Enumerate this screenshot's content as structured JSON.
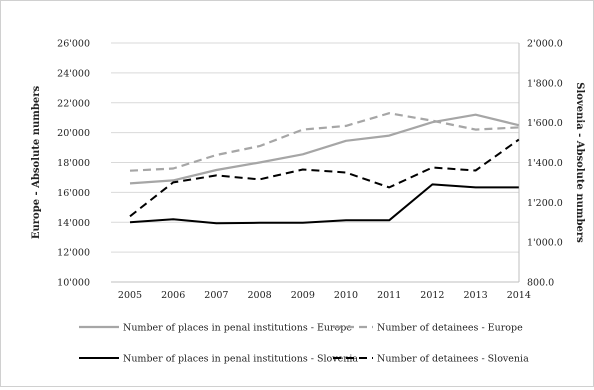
{
  "chart_data": {
    "type": "line",
    "categories": [
      "2005",
      "2006",
      "2007",
      "2008",
      "2009",
      "2010",
      "2011",
      "2012",
      "2013",
      "2014"
    ],
    "y_left": {
      "label": "Europe - Absolute numbers",
      "range": [
        10000,
        26000
      ],
      "ticks": [
        10000,
        12000,
        14000,
        16000,
        18000,
        20000,
        22000,
        24000,
        26000
      ],
      "tick_labels": [
        "10'000",
        "12'000",
        "14'000",
        "16'000",
        "18'000",
        "20'000",
        "22'000",
        "24'000",
        "26'000"
      ]
    },
    "y_right": {
      "label": "Slovenia - Absolute numbers",
      "range": [
        800,
        2000
      ],
      "ticks": [
        800,
        1000,
        1200,
        1400,
        1600,
        1800,
        2000
      ],
      "tick_labels": [
        "800.0",
        "1'000.0",
        "1'200.0",
        "1'400.0",
        "1'600.0",
        "1'800.0",
        "2'000.0"
      ]
    },
    "grid": "horizontal",
    "legend_position": "bottom",
    "series": [
      {
        "name": "Number of places in penal institutions - Europe",
        "axis": "left",
        "color": "#a6a6a6",
        "dash": "solid",
        "values": [
          16600,
          16800,
          17500,
          18000,
          18550,
          19450,
          19800,
          20700,
          21200,
          20500
        ]
      },
      {
        "name": "Number of detainees - Europe",
        "axis": "left",
        "color": "#a6a6a6",
        "dash": "dashed",
        "values": [
          17450,
          17600,
          18500,
          19100,
          20200,
          20450,
          21300,
          20800,
          20200,
          20350
        ]
      },
      {
        "name": "Number of places in penal institutions - Slovenia",
        "axis": "right",
        "color": "#000000",
        "dash": "solid",
        "values": [
          1100,
          1115,
          1095,
          1097,
          1097,
          1110,
          1110,
          1290,
          1275,
          1275
        ]
      },
      {
        "name": "Number of detainees  - Slovenia",
        "axis": "right",
        "color": "#000000",
        "dash": "dashed",
        "values": [
          1130,
          1300,
          1335,
          1315,
          1365,
          1350,
          1275,
          1375,
          1360,
          1515
        ]
      }
    ]
  }
}
